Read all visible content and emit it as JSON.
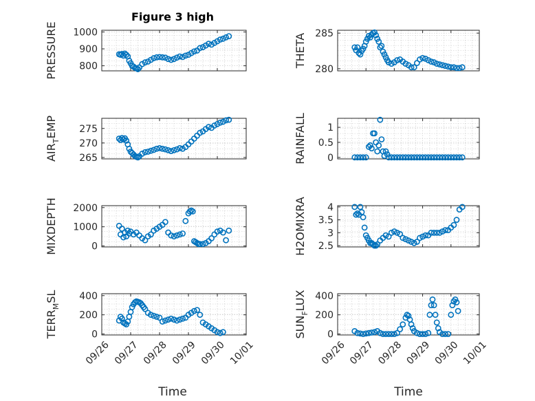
{
  "figure": {
    "title": "Figure 3 high",
    "marker_color": "#0072BD"
  },
  "chart_data": [
    {
      "type": "scatter",
      "id": "pressure",
      "ylabel": "PRESSURE",
      "ylim": [
        770,
        1010
      ],
      "yticks": [
        800,
        900,
        1000
      ],
      "show_xticks": false,
      "x": [
        0.6,
        0.65,
        0.7,
        0.75,
        0.8,
        0.85,
        0.9,
        0.95,
        1.0,
        1.05,
        1.1,
        1.15,
        1.2,
        1.25,
        1.3,
        1.4,
        1.5,
        1.6,
        1.7,
        1.8,
        1.9,
        2.0,
        2.1,
        2.2,
        2.3,
        2.4,
        2.5,
        2.6,
        2.7,
        2.8,
        2.9,
        3.0,
        3.1,
        3.2,
        3.3,
        3.4,
        3.5,
        3.6,
        3.7,
        3.8,
        3.9,
        4.0,
        4.1,
        4.2,
        4.3,
        4.4
      ],
      "y": [
        868,
        865,
        870,
        860,
        872,
        865,
        855,
        830,
        815,
        800,
        795,
        788,
        785,
        780,
        790,
        810,
        820,
        825,
        835,
        845,
        850,
        852,
        850,
        848,
        840,
        835,
        840,
        848,
        855,
        852,
        860,
        865,
        875,
        885,
        890,
        905,
        910,
        920,
        930,
        925,
        935,
        945,
        955,
        960,
        968,
        975
      ]
    },
    {
      "type": "scatter",
      "id": "theta",
      "ylabel": "THETA",
      "ylim": [
        279.7,
        285.4
      ],
      "yticks": [
        280,
        285
      ],
      "show_xticks": false,
      "x": [
        0.6,
        0.65,
        0.7,
        0.75,
        0.8,
        0.85,
        0.9,
        0.95,
        1.0,
        1.05,
        1.1,
        1.15,
        1.2,
        1.25,
        1.3,
        1.35,
        1.4,
        1.45,
        1.5,
        1.55,
        1.6,
        1.65,
        1.7,
        1.75,
        1.8,
        1.9,
        2.0,
        2.1,
        2.2,
        2.3,
        2.4,
        2.5,
        2.6,
        2.7,
        2.8,
        2.9,
        3.0,
        3.1,
        3.2,
        3.3,
        3.4,
        3.5,
        3.6,
        3.7,
        3.8,
        3.9,
        4.0,
        4.1,
        4.2,
        4.3,
        4.4
      ],
      "y": [
        283.0,
        282.6,
        283.0,
        282.2,
        282.0,
        282.5,
        282.8,
        283.2,
        283.8,
        284.2,
        284.6,
        284.4,
        284.8,
        285.0,
        285.1,
        284.7,
        284.2,
        283.8,
        283.0,
        283.2,
        282.4,
        282.0,
        281.6,
        281.2,
        280.9,
        280.7,
        280.9,
        281.2,
        281.3,
        281.0,
        280.7,
        280.5,
        280.2,
        280.2,
        280.8,
        281.3,
        281.5,
        281.4,
        281.2,
        281.0,
        280.9,
        280.7,
        280.6,
        280.5,
        280.4,
        280.3,
        280.2,
        280.2,
        280.1,
        280.1,
        280.2
      ]
    },
    {
      "type": "scatter",
      "id": "air-temp",
      "ylabel": "AIR_TEMP",
      "ylim": [
        264.5,
        278.5
      ],
      "yticks": [
        265,
        270,
        275
      ],
      "show_xticks": false,
      "x": [
        0.6,
        0.65,
        0.7,
        0.75,
        0.8,
        0.85,
        0.9,
        0.95,
        1.0,
        1.05,
        1.1,
        1.15,
        1.2,
        1.25,
        1.3,
        1.4,
        1.5,
        1.6,
        1.7,
        1.8,
        1.9,
        2.0,
        2.1,
        2.2,
        2.3,
        2.4,
        2.5,
        2.6,
        2.7,
        2.8,
        2.9,
        3.0,
        3.1,
        3.2,
        3.3,
        3.4,
        3.5,
        3.6,
        3.7,
        3.8,
        3.9,
        4.0,
        4.1,
        4.2,
        4.3,
        4.4
      ],
      "y": [
        271.5,
        271.0,
        271.7,
        271.2,
        271.6,
        270.8,
        269.5,
        268.0,
        267.0,
        266.5,
        266.0,
        265.5,
        265.2,
        265.0,
        265.4,
        266.3,
        266.8,
        267.0,
        267.3,
        267.6,
        268.0,
        268.2,
        268.0,
        267.8,
        267.5,
        267.2,
        267.5,
        267.8,
        268.2,
        268.0,
        268.6,
        269.5,
        270.5,
        271.5,
        272.5,
        273.5,
        274.0,
        274.8,
        275.5,
        275.2,
        276.0,
        276.5,
        277.0,
        277.3,
        277.8,
        278.0
      ]
    },
    {
      "type": "scatter",
      "id": "rainfall",
      "ylabel": "RAINFALL",
      "ylim": [
        -0.05,
        1.3
      ],
      "yticks": [
        0,
        0.5,
        1
      ],
      "show_xticks": false,
      "x": [
        0.6,
        0.7,
        0.8,
        0.9,
        1.0,
        1.1,
        1.15,
        1.2,
        1.25,
        1.3,
        1.35,
        1.4,
        1.45,
        1.5,
        1.55,
        1.6,
        1.65,
        1.7,
        1.75,
        1.8,
        1.9,
        2.0,
        2.1,
        2.2,
        2.3,
        2.4,
        2.5,
        2.6,
        2.7,
        2.8,
        2.9,
        3.0,
        3.1,
        3.2,
        3.3,
        3.4,
        3.5,
        3.6,
        3.7,
        3.8,
        3.9,
        4.0,
        4.1,
        4.2,
        4.3,
        4.4
      ],
      "y": [
        0,
        0,
        0,
        0,
        0,
        0.35,
        0.4,
        0.3,
        0.8,
        0.8,
        0.5,
        0.2,
        0.4,
        1.25,
        0.6,
        0.2,
        0.05,
        0.2,
        0.1,
        0,
        0,
        0,
        0,
        0,
        0,
        0,
        0,
        0,
        0,
        0,
        0,
        0,
        0,
        0,
        0,
        0,
        0,
        0,
        0,
        0,
        0,
        0,
        0,
        0,
        0,
        0
      ]
    },
    {
      "type": "scatter",
      "id": "mixdepth",
      "ylabel": "MIXDEPTH",
      "ylim": [
        -50,
        2100
      ],
      "yticks": [
        0,
        1000,
        2000
      ],
      "show_xticks": false,
      "x": [
        0.6,
        0.65,
        0.7,
        0.75,
        0.8,
        0.85,
        0.9,
        0.95,
        1.0,
        1.1,
        1.2,
        1.3,
        1.4,
        1.5,
        1.6,
        1.7,
        1.8,
        1.9,
        2.0,
        2.1,
        2.2,
        2.3,
        2.4,
        2.5,
        2.6,
        2.7,
        2.8,
        2.9,
        3.0,
        3.05,
        3.1,
        3.15,
        3.2,
        3.25,
        3.3,
        3.35,
        3.4,
        3.5,
        3.6,
        3.7,
        3.8,
        3.9,
        4.0,
        4.1,
        4.2,
        4.3,
        4.4
      ],
      "y": [
        1050,
        600,
        900,
        450,
        700,
        500,
        800,
        650,
        750,
        600,
        700,
        550,
        400,
        300,
        500,
        600,
        800,
        900,
        1000,
        1100,
        1250,
        700,
        550,
        500,
        550,
        600,
        650,
        1300,
        1700,
        1800,
        1850,
        1800,
        250,
        200,
        150,
        100,
        100,
        100,
        150,
        250,
        400,
        600,
        750,
        800,
        700,
        300,
        800
      ]
    },
    {
      "type": "scatter",
      "id": "h2omixra",
      "ylabel": "H2OMIXRA",
      "ylim": [
        2.45,
        4.05
      ],
      "yticks": [
        2.5,
        3,
        3.5,
        4
      ],
      "show_xticks": false,
      "x": [
        0.6,
        0.65,
        0.7,
        0.75,
        0.8,
        0.85,
        0.9,
        0.95,
        1.0,
        1.05,
        1.1,
        1.15,
        1.2,
        1.25,
        1.3,
        1.35,
        1.4,
        1.5,
        1.6,
        1.7,
        1.8,
        1.9,
        2.0,
        2.1,
        2.2,
        2.3,
        2.4,
        2.5,
        2.6,
        2.7,
        2.8,
        2.9,
        3.0,
        3.1,
        3.2,
        3.3,
        3.4,
        3.5,
        3.6,
        3.7,
        3.8,
        3.9,
        4.0,
        4.1,
        4.2,
        4.3,
        4.4
      ],
      "y": [
        4.0,
        3.7,
        3.75,
        3.7,
        4.0,
        3.8,
        3.6,
        3.2,
        2.9,
        2.8,
        2.7,
        2.6,
        2.6,
        2.55,
        2.5,
        2.5,
        2.55,
        2.7,
        2.8,
        2.9,
        2.85,
        3.0,
        3.05,
        3.0,
        2.95,
        2.8,
        2.75,
        2.7,
        2.65,
        2.6,
        2.65,
        2.8,
        2.85,
        2.9,
        2.9,
        3.0,
        3.0,
        3.0,
        3.0,
        3.05,
        3.1,
        3.1,
        3.2,
        3.3,
        3.5,
        3.9,
        4.0
      ]
    },
    {
      "type": "scatter",
      "id": "terr-msl",
      "ylabel": "TERR_MSL",
      "ylim": [
        -10,
        420
      ],
      "yticks": [
        0,
        200,
        400
      ],
      "show_xticks": true,
      "x": [
        0.6,
        0.65,
        0.7,
        0.75,
        0.8,
        0.85,
        0.9,
        0.95,
        1.0,
        1.05,
        1.1,
        1.15,
        1.2,
        1.25,
        1.3,
        1.35,
        1.4,
        1.45,
        1.5,
        1.6,
        1.7,
        1.8,
        1.9,
        2.0,
        2.1,
        2.2,
        2.3,
        2.4,
        2.5,
        2.6,
        2.7,
        2.8,
        2.9,
        3.0,
        3.1,
        3.2,
        3.3,
        3.4,
        3.5,
        3.6,
        3.7,
        3.8,
        3.9,
        4.0,
        4.1,
        4.2
      ],
      "y": [
        140,
        180,
        160,
        120,
        110,
        100,
        130,
        180,
        230,
        280,
        310,
        330,
        340,
        335,
        330,
        320,
        300,
        280,
        260,
        220,
        200,
        190,
        180,
        170,
        130,
        140,
        150,
        160,
        150,
        140,
        150,
        160,
        170,
        200,
        220,
        240,
        250,
        200,
        120,
        100,
        80,
        60,
        40,
        20,
        10,
        20
      ]
    },
    {
      "type": "scatter",
      "id": "sun-flux",
      "ylabel": "SUN_FLUX",
      "ylim": [
        -10,
        420
      ],
      "yticks": [
        0,
        200,
        400
      ],
      "show_xticks": true,
      "x": [
        0.6,
        0.7,
        0.8,
        0.9,
        1.0,
        1.1,
        1.2,
        1.3,
        1.4,
        1.5,
        1.6,
        1.7,
        1.8,
        1.9,
        2.0,
        2.1,
        2.2,
        2.3,
        2.4,
        2.45,
        2.5,
        2.55,
        2.6,
        2.65,
        2.7,
        2.8,
        2.9,
        3.0,
        3.1,
        3.2,
        3.25,
        3.3,
        3.35,
        3.4,
        3.45,
        3.5,
        3.55,
        3.6,
        3.7,
        3.8,
        3.9,
        4.0,
        4.05,
        4.1,
        4.15,
        4.2,
        4.25
      ],
      "y": [
        30,
        10,
        5,
        0,
        5,
        10,
        15,
        20,
        30,
        10,
        0,
        0,
        0,
        0,
        0,
        10,
        50,
        100,
        170,
        200,
        190,
        150,
        100,
        60,
        30,
        10,
        0,
        0,
        0,
        10,
        200,
        300,
        360,
        300,
        200,
        120,
        60,
        20,
        0,
        0,
        0,
        200,
        300,
        340,
        360,
        330,
        240
      ]
    }
  ],
  "x_axis": {
    "xlim": [
      0,
      5
    ],
    "tick_positions": [
      0,
      1,
      2,
      3,
      4,
      5
    ],
    "tick_labels": [
      "09/26",
      "09/27",
      "09/28",
      "09/29",
      "09/30",
      "10/01"
    ],
    "xlabel": "Time"
  }
}
